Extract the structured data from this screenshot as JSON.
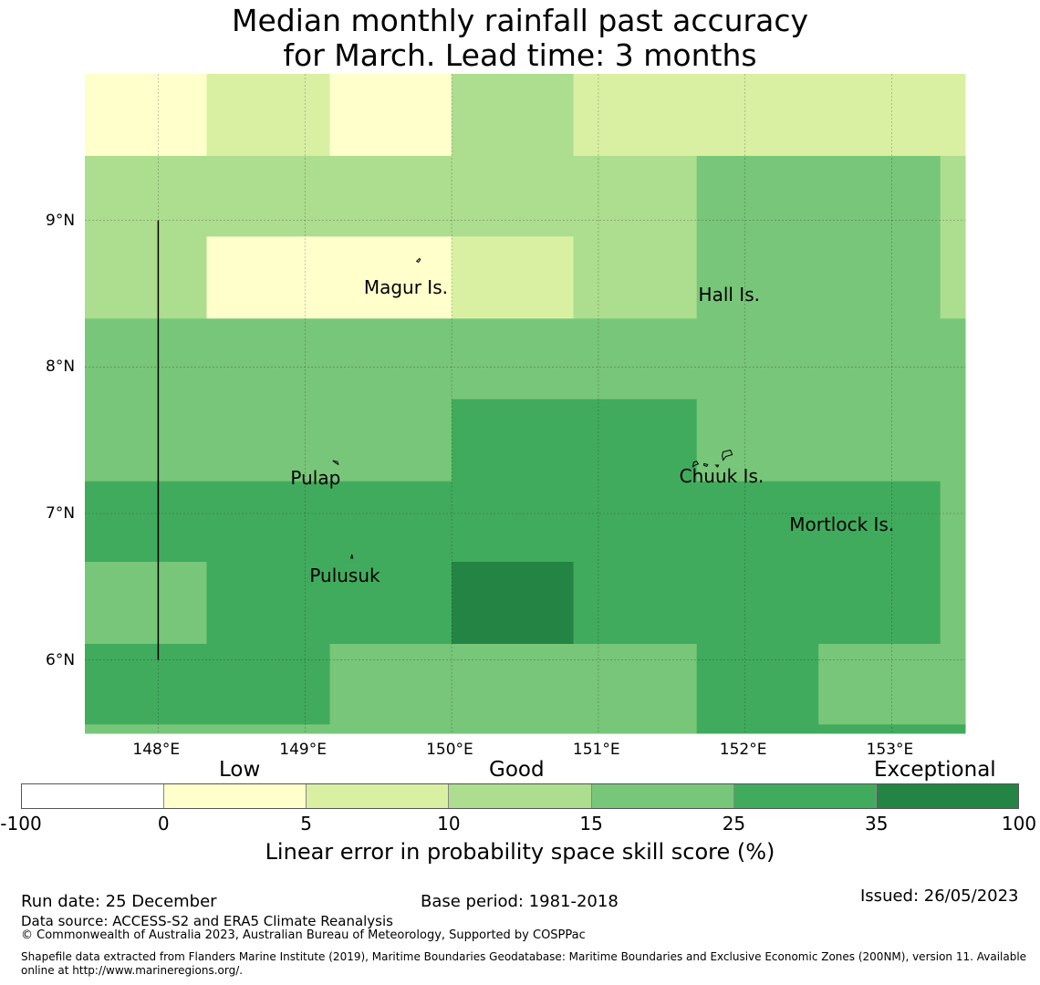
{
  "title": {
    "line1": "Median monthly rainfall past accuracy",
    "line2": "for March. Lead time: 3 months"
  },
  "map": {
    "lon_range": [
      147.5,
      153.5
    ],
    "lat_range": [
      5.5,
      10.0
    ],
    "grid_rows": [
      {
        "lat_top": 10.0,
        "lat_bottom": 9.44,
        "cells": [
          {
            "lon_from": 147.5,
            "lon_to": 148.33,
            "cls": 1
          },
          {
            "lon_from": 148.33,
            "lon_to": 149.17,
            "cls": 2
          },
          {
            "lon_from": 149.17,
            "lon_to": 150.0,
            "cls": 1
          },
          {
            "lon_from": 150.0,
            "lon_to": 150.83,
            "cls": 3
          },
          {
            "lon_from": 150.83,
            "lon_to": 153.5,
            "cls": 2
          }
        ]
      },
      {
        "lat_top": 9.44,
        "lat_bottom": 8.89,
        "cells": [
          {
            "lon_from": 147.5,
            "lon_to": 151.67,
            "cls": 3
          },
          {
            "lon_from": 151.67,
            "lon_to": 153.33,
            "cls": 4
          },
          {
            "lon_from": 153.33,
            "lon_to": 153.5,
            "cls": 3
          }
        ]
      },
      {
        "lat_top": 8.89,
        "lat_bottom": 8.33,
        "cells": [
          {
            "lon_from": 147.5,
            "lon_to": 148.33,
            "cls": 3
          },
          {
            "lon_from": 148.33,
            "lon_to": 150.0,
            "cls": 1
          },
          {
            "lon_from": 150.0,
            "lon_to": 150.83,
            "cls": 2
          },
          {
            "lon_from": 150.83,
            "lon_to": 151.67,
            "cls": 3
          },
          {
            "lon_from": 151.67,
            "lon_to": 153.33,
            "cls": 4
          },
          {
            "lon_from": 153.33,
            "lon_to": 153.5,
            "cls": 3
          }
        ]
      },
      {
        "lat_top": 8.33,
        "lat_bottom": 7.78,
        "cells": [
          {
            "lon_from": 147.5,
            "lon_to": 153.5,
            "cls": 4
          }
        ]
      },
      {
        "lat_top": 7.78,
        "lat_bottom": 7.22,
        "cells": [
          {
            "lon_from": 147.5,
            "lon_to": 150.0,
            "cls": 4
          },
          {
            "lon_from": 150.0,
            "lon_to": 151.67,
            "cls": 5
          },
          {
            "lon_from": 151.67,
            "lon_to": 153.5,
            "cls": 4
          }
        ]
      },
      {
        "lat_top": 7.22,
        "lat_bottom": 6.67,
        "cells": [
          {
            "lon_from": 147.5,
            "lon_to": 153.33,
            "cls": 5
          },
          {
            "lon_from": 153.33,
            "lon_to": 153.5,
            "cls": 4
          }
        ]
      },
      {
        "lat_top": 6.67,
        "lat_bottom": 6.11,
        "cells": [
          {
            "lon_from": 147.5,
            "lon_to": 148.33,
            "cls": 4
          },
          {
            "lon_from": 148.33,
            "lon_to": 150.0,
            "cls": 5
          },
          {
            "lon_from": 150.0,
            "lon_to": 150.83,
            "cls": 6
          },
          {
            "lon_from": 150.83,
            "lon_to": 153.33,
            "cls": 5
          },
          {
            "lon_from": 153.33,
            "lon_to": 153.5,
            "cls": 4
          }
        ]
      },
      {
        "lat_top": 6.11,
        "lat_bottom": 5.56,
        "cells": [
          {
            "lon_from": 147.5,
            "lon_to": 149.17,
            "cls": 5
          },
          {
            "lon_from": 149.17,
            "lon_to": 151.67,
            "cls": 4
          },
          {
            "lon_from": 151.67,
            "lon_to": 152.5,
            "cls": 5
          },
          {
            "lon_from": 152.5,
            "lon_to": 153.5,
            "cls": 4
          }
        ]
      },
      {
        "lat_top": 5.56,
        "lat_bottom": 5.5,
        "cells": [
          {
            "lon_from": 147.5,
            "lon_to": 149.17,
            "cls": 4
          },
          {
            "lon_from": 149.17,
            "lon_to": 151.67,
            "cls": 4
          },
          {
            "lon_from": 151.67,
            "lon_to": 152.5,
            "cls": 5
          },
          {
            "lon_from": 152.5,
            "lon_to": 153.5,
            "cls": 5
          }
        ]
      }
    ],
    "boundary_line": {
      "lon": 148.0,
      "lat_from": 6.0,
      "lat_to": 9.0
    },
    "lon_ticks": [
      {
        "value": 148,
        "label": "148°E"
      },
      {
        "value": 149,
        "label": "149°E"
      },
      {
        "value": 150,
        "label": "150°E"
      },
      {
        "value": 151,
        "label": "151°E"
      },
      {
        "value": 152,
        "label": "152°E"
      },
      {
        "value": 153,
        "label": "153°E"
      }
    ],
    "lat_ticks": [
      {
        "value": 9,
        "label": "9°N"
      },
      {
        "value": 8,
        "label": "8°N"
      },
      {
        "value": 7,
        "label": "7°N"
      },
      {
        "value": 6,
        "label": "6°N"
      }
    ],
    "places": [
      {
        "name": "Magur Is.",
        "lon": 149.7,
        "lat": 8.55
      },
      {
        "name": "Hall Is.",
        "lon": 151.98,
        "lat": 8.5
      },
      {
        "name": "Pulap",
        "lon": 149.2,
        "lat": 7.25
      },
      {
        "name": "Chuuk Is.",
        "lon": 151.85,
        "lat": 7.26
      },
      {
        "name": "Mortlock Is.",
        "lon": 152.6,
        "lat": 6.93
      },
      {
        "name": "Pulusuk",
        "lon": 149.33,
        "lat": 6.58
      }
    ]
  },
  "colorbar": {
    "categories": [
      {
        "label": "Low",
        "boundary_from": 0,
        "boundary_to": 5
      },
      {
        "label": "Good",
        "boundary_from": 10,
        "boundary_to": 15
      },
      {
        "label": "Exceptional",
        "boundary_from": 35,
        "boundary_to": 100
      }
    ],
    "boundaries": [
      "-100",
      "0",
      "5",
      "10",
      "15",
      "25",
      "35",
      "100"
    ],
    "colors": [
      "#ffffff",
      "#ffffcc",
      "#d9f0a3",
      "#addd8e",
      "#78c679",
      "#41ab5d",
      "#238443"
    ],
    "label": "Linear error in probability space skill score (%)"
  },
  "footer": {
    "run_date": "Run date: 25 December",
    "base_period": "Base period: 1981-2018",
    "issued": "Issued: 26/05/2023",
    "data_source": "Data source: ACCESS-S2 and ERA5 Climate Reanalysis",
    "copyright": "© Commonwealth of Australia 2023, Australian Bureau of Meteorology, Supported by COSPPac",
    "shapefile_line1": "Shapefile data extracted from Flanders Marine Institute (2019), Maritime Boundaries Geodatabase: Maritime Boundaries and Exclusive Economic Zones (200NM), version 11. Available",
    "shapefile_line2": "online at http://www.marineregions.org/."
  }
}
